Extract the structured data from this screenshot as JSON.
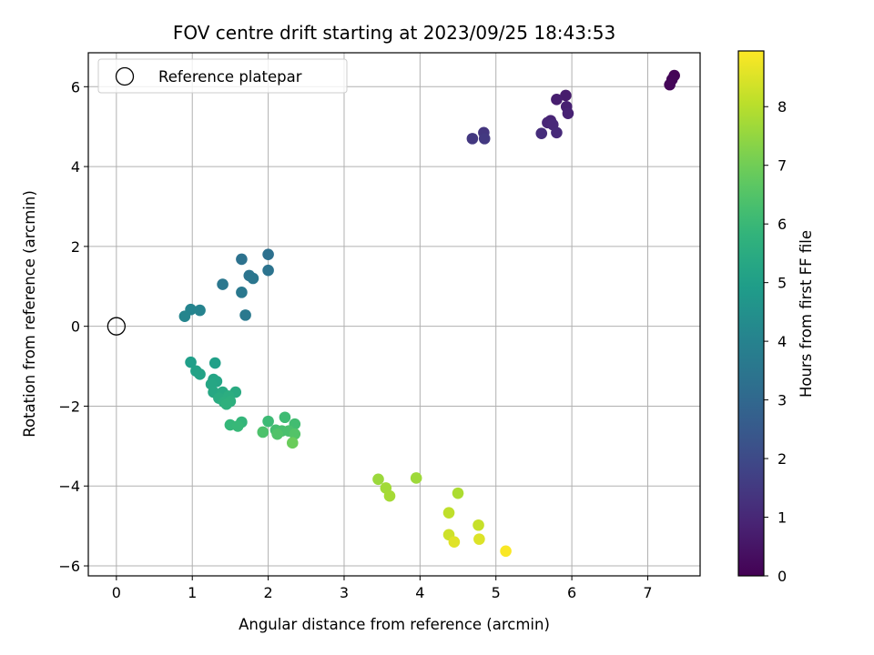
{
  "chart_data": {
    "type": "scatter",
    "title": "FOV centre drift starting at 2023/09/25 18:43:53",
    "xlabel": "Angular distance from reference (arcmin)",
    "ylabel": "Rotation from reference (arcmin)",
    "xlim": [
      -0.37,
      7.69
    ],
    "ylim": [
      -6.25,
      6.85
    ],
    "xticks": [
      0,
      1,
      2,
      3,
      4,
      5,
      6,
      7
    ],
    "yticks": [
      -6,
      -4,
      -2,
      0,
      2,
      4,
      6
    ],
    "grid": true,
    "legend": {
      "placement": "upper-left",
      "entries": [
        "Reference platepar"
      ]
    },
    "reference_point": {
      "x": 0,
      "y": 0
    },
    "colorbar": {
      "label": "Hours from first FF file",
      "range": [
        0,
        8.95
      ],
      "ticks": [
        0,
        1,
        2,
        3,
        4,
        5,
        6,
        7,
        8
      ],
      "colormap": "viridis"
    },
    "points": [
      {
        "x": 7.35,
        "y": 6.28,
        "t": 0.05
      },
      {
        "x": 7.32,
        "y": 6.18,
        "t": 0.1
      },
      {
        "x": 7.29,
        "y": 6.05,
        "t": 0.15
      },
      {
        "x": 5.92,
        "y": 5.78,
        "t": 0.7
      },
      {
        "x": 5.8,
        "y": 5.68,
        "t": 0.75
      },
      {
        "x": 5.93,
        "y": 5.5,
        "t": 0.8
      },
      {
        "x": 5.95,
        "y": 5.33,
        "t": 0.85
      },
      {
        "x": 5.72,
        "y": 5.15,
        "t": 0.9
      },
      {
        "x": 5.68,
        "y": 5.1,
        "t": 0.95
      },
      {
        "x": 5.75,
        "y": 5.05,
        "t": 1.0
      },
      {
        "x": 5.8,
        "y": 4.85,
        "t": 1.05
      },
      {
        "x": 5.6,
        "y": 4.83,
        "t": 1.15
      },
      {
        "x": 4.84,
        "y": 4.85,
        "t": 1.4
      },
      {
        "x": 4.69,
        "y": 4.7,
        "t": 1.45
      },
      {
        "x": 4.85,
        "y": 4.7,
        "t": 1.5
      },
      {
        "x": 2.0,
        "y": 1.8,
        "t": 3.3
      },
      {
        "x": 1.65,
        "y": 1.68,
        "t": 3.35
      },
      {
        "x": 2.0,
        "y": 1.4,
        "t": 3.4
      },
      {
        "x": 1.75,
        "y": 1.27,
        "t": 3.45
      },
      {
        "x": 1.8,
        "y": 1.2,
        "t": 3.5
      },
      {
        "x": 1.4,
        "y": 1.05,
        "t": 3.55
      },
      {
        "x": 1.65,
        "y": 0.85,
        "t": 3.6
      },
      {
        "x": 1.7,
        "y": 0.28,
        "t": 3.65
      },
      {
        "x": 1.1,
        "y": 0.4,
        "t": 4.0
      },
      {
        "x": 0.98,
        "y": 0.42,
        "t": 4.05
      },
      {
        "x": 0.9,
        "y": 0.25,
        "t": 4.1
      },
      {
        "x": 0.98,
        "y": -0.9,
        "t": 5.0
      },
      {
        "x": 1.3,
        "y": -0.92,
        "t": 5.05
      },
      {
        "x": 1.05,
        "y": -1.12,
        "t": 5.1
      },
      {
        "x": 1.1,
        "y": -1.2,
        "t": 5.15
      },
      {
        "x": 1.28,
        "y": -1.33,
        "t": 5.2
      },
      {
        "x": 1.32,
        "y": -1.38,
        "t": 5.25
      },
      {
        "x": 1.25,
        "y": -1.45,
        "t": 5.3
      },
      {
        "x": 1.28,
        "y": -1.65,
        "t": 5.35
      },
      {
        "x": 1.4,
        "y": -1.65,
        "t": 5.4
      },
      {
        "x": 1.57,
        "y": -1.65,
        "t": 5.45
      },
      {
        "x": 1.35,
        "y": -1.8,
        "t": 5.5
      },
      {
        "x": 1.48,
        "y": -1.75,
        "t": 5.55
      },
      {
        "x": 1.42,
        "y": -1.9,
        "t": 5.6
      },
      {
        "x": 1.5,
        "y": -1.88,
        "t": 5.65
      },
      {
        "x": 1.45,
        "y": -1.95,
        "t": 5.7
      },
      {
        "x": 1.65,
        "y": -2.4,
        "t": 5.9
      },
      {
        "x": 1.5,
        "y": -2.47,
        "t": 5.95
      },
      {
        "x": 1.6,
        "y": -2.5,
        "t": 6.0
      },
      {
        "x": 2.0,
        "y": -2.38,
        "t": 6.1
      },
      {
        "x": 2.22,
        "y": -2.28,
        "t": 6.15
      },
      {
        "x": 2.35,
        "y": -2.45,
        "t": 6.2
      },
      {
        "x": 2.1,
        "y": -2.6,
        "t": 6.25
      },
      {
        "x": 2.18,
        "y": -2.62,
        "t": 6.3
      },
      {
        "x": 2.27,
        "y": -2.62,
        "t": 6.35
      },
      {
        "x": 1.93,
        "y": -2.65,
        "t": 6.4
      },
      {
        "x": 2.12,
        "y": -2.7,
        "t": 6.45
      },
      {
        "x": 2.35,
        "y": -2.7,
        "t": 6.5
      },
      {
        "x": 2.32,
        "y": -2.92,
        "t": 6.9
      },
      {
        "x": 3.45,
        "y": -3.83,
        "t": 7.6
      },
      {
        "x": 3.95,
        "y": -3.8,
        "t": 7.65
      },
      {
        "x": 3.55,
        "y": -4.05,
        "t": 7.7
      },
      {
        "x": 3.6,
        "y": -4.25,
        "t": 7.75
      },
      {
        "x": 4.5,
        "y": -4.18,
        "t": 7.85
      },
      {
        "x": 4.38,
        "y": -4.67,
        "t": 8.1
      },
      {
        "x": 4.77,
        "y": -4.98,
        "t": 8.2
      },
      {
        "x": 4.38,
        "y": -5.22,
        "t": 8.3
      },
      {
        "x": 4.78,
        "y": -5.33,
        "t": 8.5
      },
      {
        "x": 4.45,
        "y": -5.4,
        "t": 8.55
      },
      {
        "x": 5.13,
        "y": -5.63,
        "t": 8.9
      }
    ]
  }
}
